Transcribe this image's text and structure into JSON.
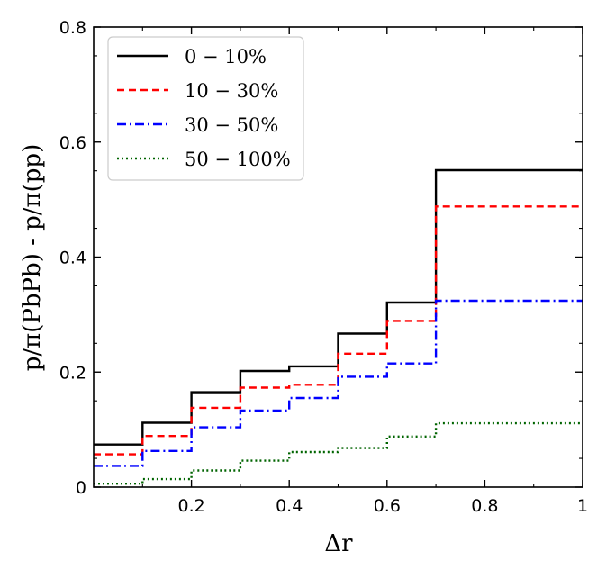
{
  "chart_data": {
    "type": "line",
    "step": true,
    "xlabel": "Δr",
    "ylabel": "p/π(PbPb) - p/π(pp)",
    "xlim": [
      0,
      1
    ],
    "ylim": [
      0,
      0.8
    ],
    "xticks": [
      0.2,
      0.4,
      0.6,
      0.8,
      1.0
    ],
    "xtick_labels": [
      "0.2",
      "0.4",
      "0.6",
      "0.8",
      "1"
    ],
    "yticks": [
      0,
      0.2,
      0.4,
      0.6,
      0.8
    ],
    "ytick_labels": [
      "0",
      "0.2",
      "0.4",
      "0.6",
      "0.8"
    ],
    "grid": false,
    "legend_position": "top-left",
    "bin_edges": [
      0,
      0.1,
      0.2,
      0.3,
      0.4,
      0.5,
      0.6,
      0.7,
      1.0
    ],
    "series": [
      {
        "name": "0 − 10%",
        "color": "#000000",
        "style": "solid",
        "values": [
          0.074,
          0.112,
          0.165,
          0.202,
          0.21,
          0.267,
          0.321,
          0.551
        ]
      },
      {
        "name": "10 − 30%",
        "color": "#ff0000",
        "style": "dashed",
        "values": [
          0.057,
          0.089,
          0.138,
          0.173,
          0.178,
          0.232,
          0.289,
          0.488
        ]
      },
      {
        "name": "30 − 50%",
        "color": "#0000ff",
        "style": "dashdot",
        "values": [
          0.037,
          0.063,
          0.104,
          0.133,
          0.155,
          0.192,
          0.215,
          0.324
        ]
      },
      {
        "name": "50 − 100%",
        "color": "#006400",
        "style": "dotted",
        "values": [
          0.006,
          0.014,
          0.029,
          0.046,
          0.061,
          0.068,
          0.088,
          0.111
        ]
      }
    ]
  }
}
